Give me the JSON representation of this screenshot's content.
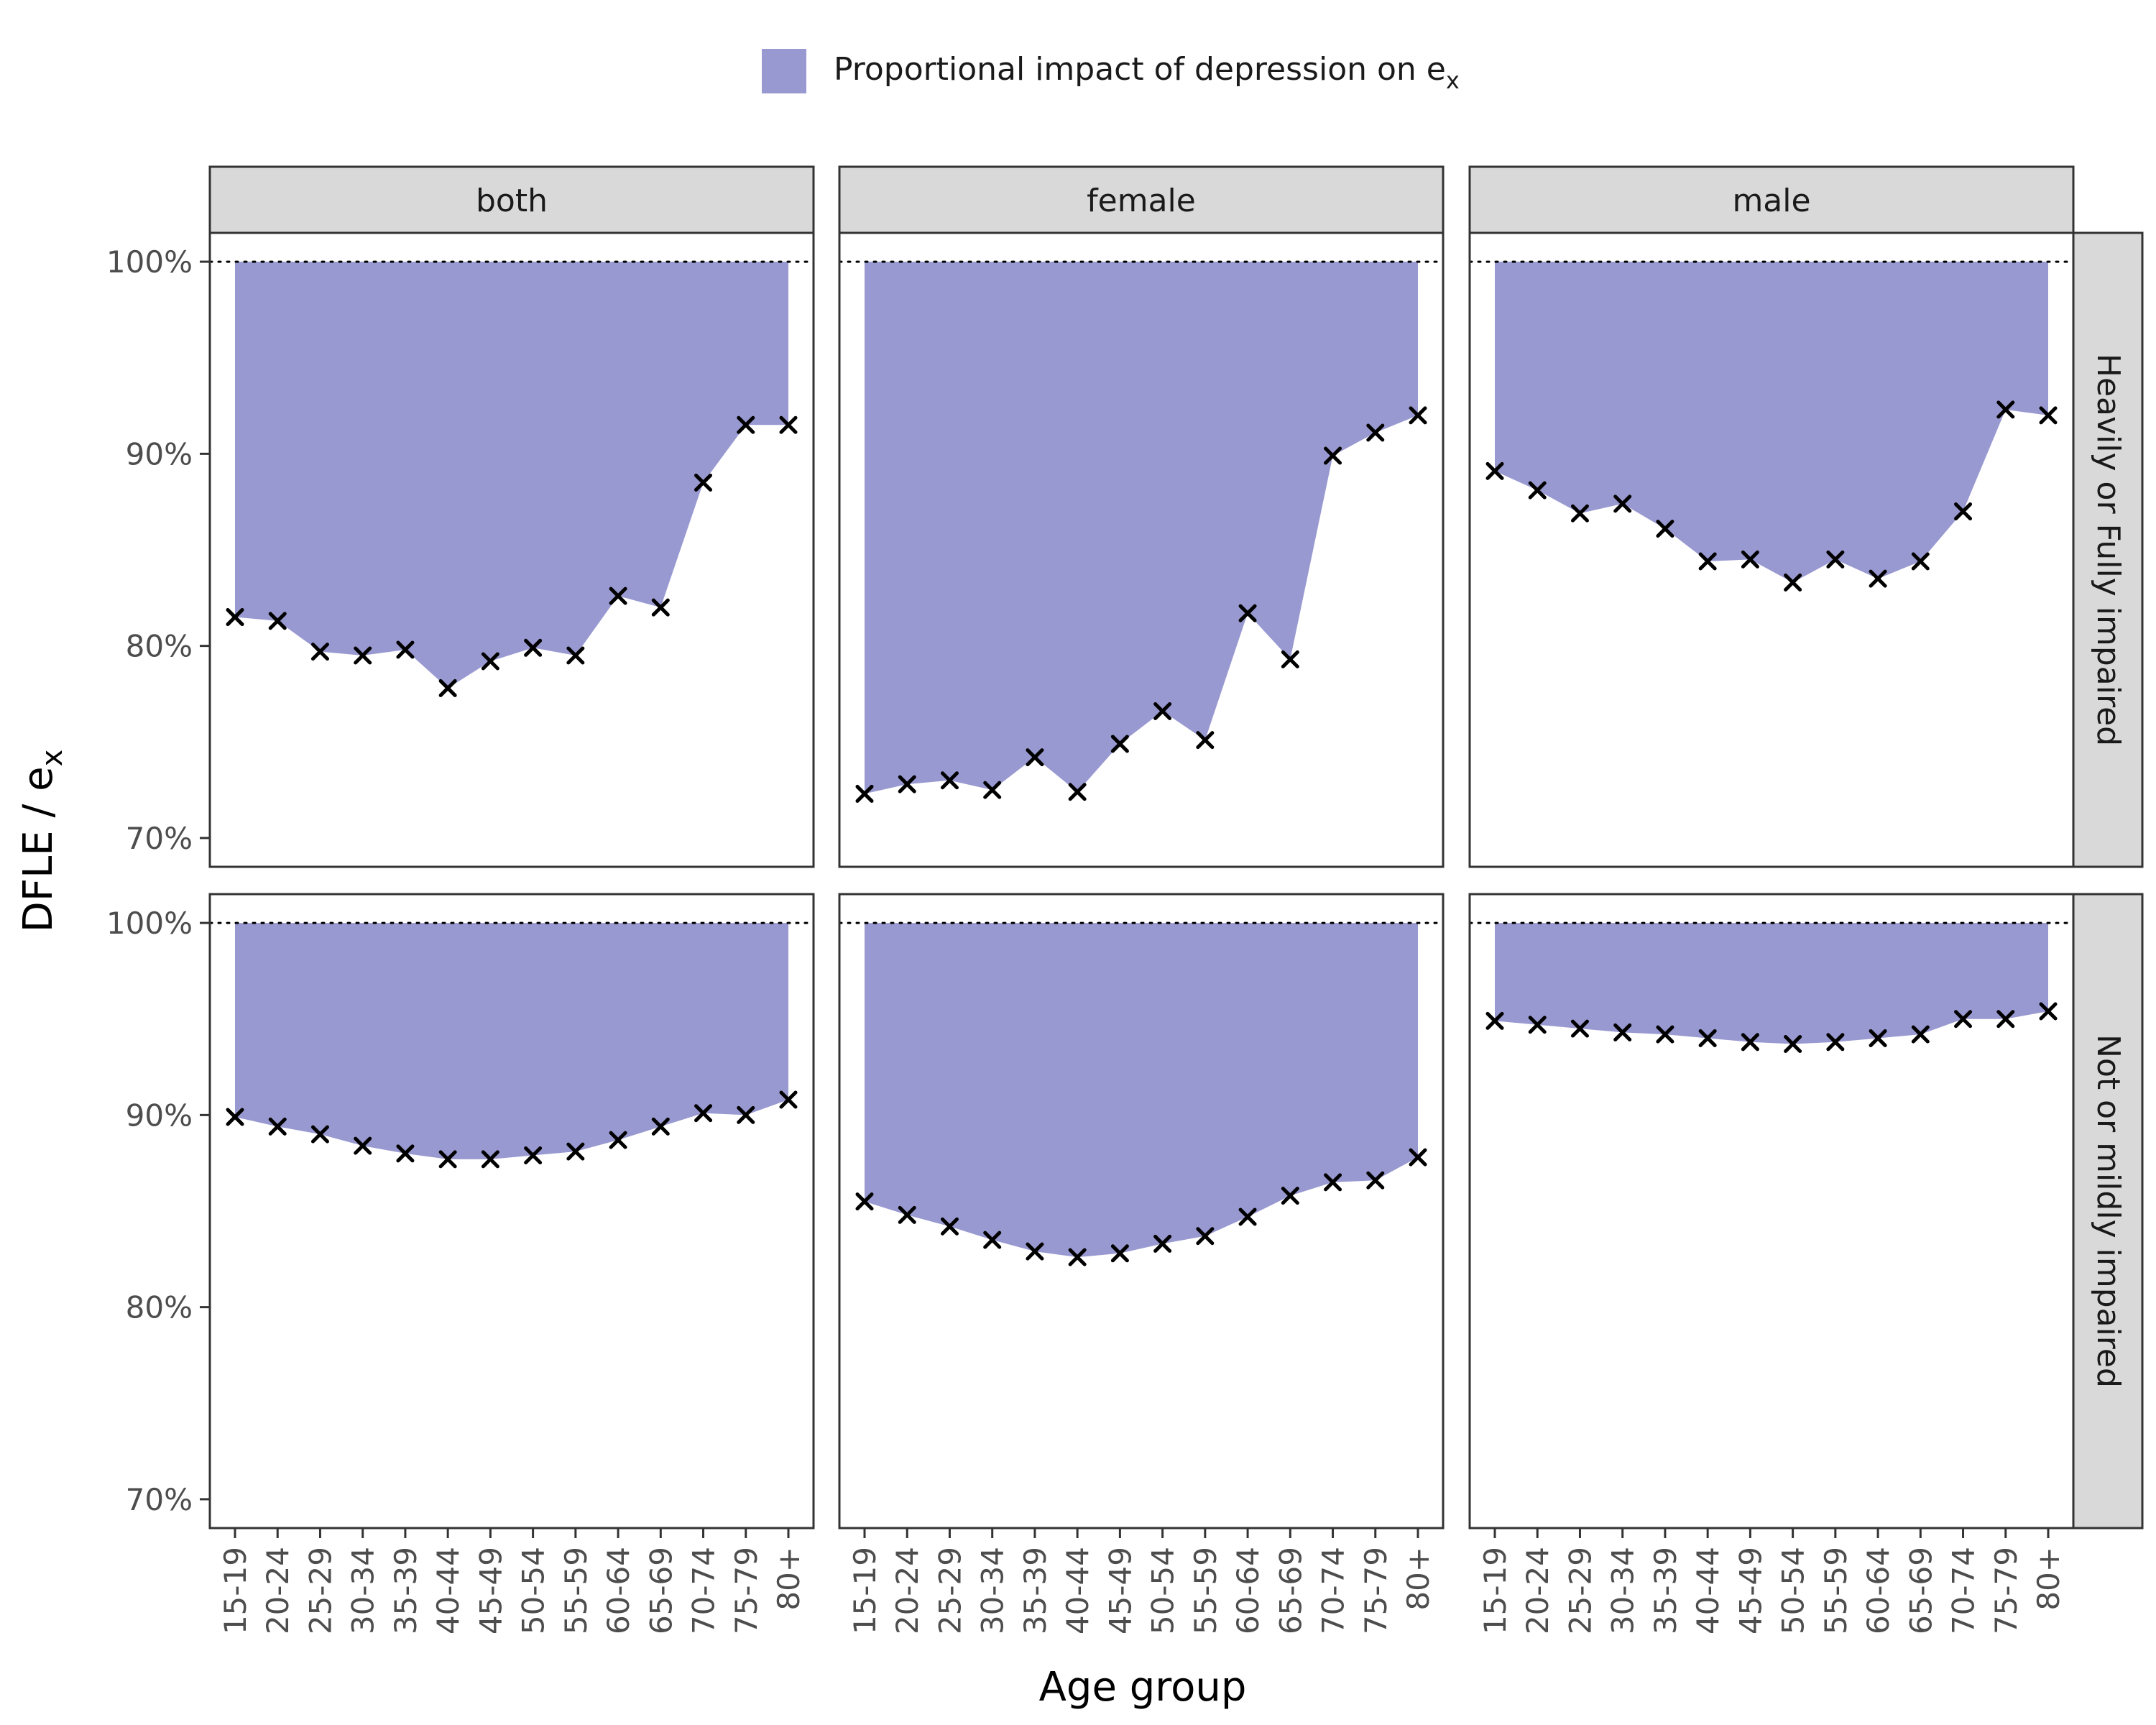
{
  "chart_data": {
    "type": "area",
    "title": "",
    "xlabel": "Age group",
    "ylabel": "DFLE / e",
    "ylabel_subscript": "x",
    "legend": {
      "label": "Proportional impact of depression on e",
      "label_subscript": "x",
      "color": "#9999d1",
      "placement": "top"
    },
    "ylim": [
      0.685,
      1.015
    ],
    "yticks": [
      0.7,
      0.8,
      0.9,
      1.0
    ],
    "ytick_labels": [
      "70%",
      "80%",
      "90%",
      "100%"
    ],
    "reference_line": 1.0,
    "grid": false,
    "categories": [
      "15-19",
      "20-24",
      "25-29",
      "30-34",
      "35-39",
      "40-44",
      "45-49",
      "50-54",
      "55-59",
      "60-64",
      "65-69",
      "70-74",
      "75-79",
      "80+"
    ],
    "columns": [
      "both",
      "female",
      "male"
    ],
    "rows": [
      "Heavily or Fully impaired",
      "Not or mildly impaired"
    ],
    "marker": "x",
    "fill_color": "#9999d1",
    "panels": [
      {
        "row": 0,
        "col": 0,
        "values": [
          0.815,
          0.813,
          0.797,
          0.795,
          0.798,
          0.778,
          0.792,
          0.799,
          0.795,
          0.826,
          0.82,
          0.885,
          0.915,
          0.915
        ]
      },
      {
        "row": 0,
        "col": 1,
        "values": [
          0.723,
          0.728,
          0.73,
          0.725,
          0.742,
          0.724,
          0.749,
          0.766,
          0.751,
          0.817,
          0.793,
          0.899,
          0.911,
          0.92
        ]
      },
      {
        "row": 0,
        "col": 2,
        "values": [
          0.891,
          0.881,
          0.869,
          0.874,
          0.861,
          0.844,
          0.845,
          0.833,
          0.845,
          0.835,
          0.844,
          0.87,
          0.923,
          0.92
        ]
      },
      {
        "row": 1,
        "col": 0,
        "values": [
          0.899,
          0.894,
          0.89,
          0.884,
          0.88,
          0.877,
          0.877,
          0.879,
          0.881,
          0.887,
          0.894,
          0.901,
          0.9,
          0.908
        ]
      },
      {
        "row": 1,
        "col": 1,
        "values": [
          0.855,
          0.848,
          0.842,
          0.835,
          0.829,
          0.826,
          0.828,
          0.833,
          0.837,
          0.847,
          0.858,
          0.865,
          0.866,
          0.878
        ]
      },
      {
        "row": 1,
        "col": 2,
        "values": [
          0.949,
          0.947,
          0.945,
          0.943,
          0.942,
          0.94,
          0.938,
          0.937,
          0.938,
          0.94,
          0.942,
          0.95,
          0.95,
          0.954
        ]
      }
    ]
  }
}
